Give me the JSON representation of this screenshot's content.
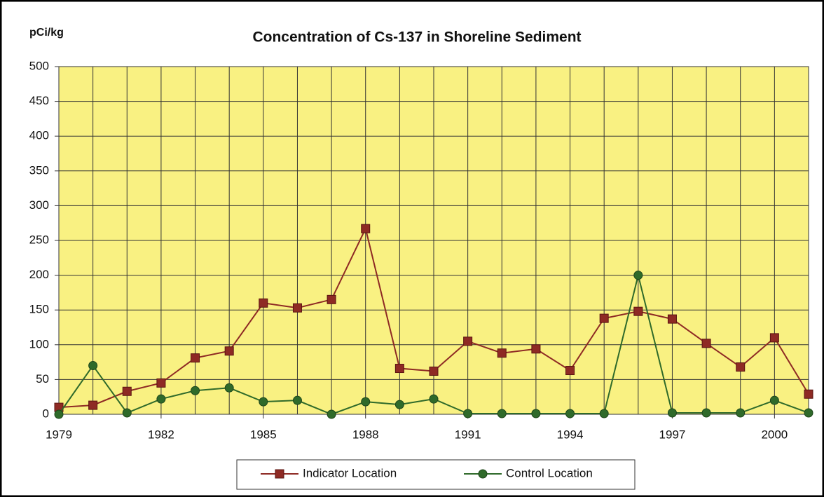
{
  "chart_data": {
    "type": "line",
    "title": "Concentration of Cs-137 in Shoreline Sediment",
    "y_label": "pCi/kg",
    "x": [
      1979,
      1980,
      1981,
      1982,
      1983,
      1984,
      1985,
      1986,
      1987,
      1988,
      1989,
      1990,
      1991,
      1992,
      1993,
      1994,
      1995,
      1996,
      1997,
      1998,
      1999,
      2000,
      2001
    ],
    "series": [
      {
        "name": "Indicator Location",
        "color": "#8e2a24",
        "marker": "square",
        "values": [
          10,
          13,
          33,
          45,
          81,
          91,
          160,
          153,
          165,
          267,
          66,
          62,
          105,
          88,
          94,
          63,
          138,
          148,
          137,
          102,
          68,
          110,
          29
        ]
      },
      {
        "name": "Control Location",
        "color": "#2f6a2a",
        "marker": "circle",
        "values": [
          0,
          70,
          2,
          22,
          34,
          38,
          18,
          20,
          0,
          18,
          14,
          22,
          1,
          1,
          1,
          1,
          1,
          200,
          2,
          2,
          2,
          20,
          2
        ]
      }
    ],
    "xlim": [
      1979,
      2001
    ],
    "xticks": [
      1979,
      1982,
      1985,
      1988,
      1991,
      1994,
      1997,
      2000
    ],
    "ylim": [
      0,
      500
    ],
    "yticks": [
      0,
      50,
      100,
      150,
      200,
      250,
      300,
      350,
      400,
      450,
      500
    ],
    "grid": true,
    "legend": "bottom"
  }
}
